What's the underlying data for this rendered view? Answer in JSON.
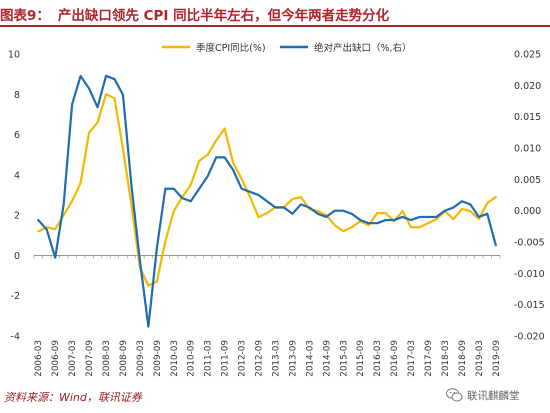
{
  "header": {
    "figure_label": "图表9：",
    "title": "产出缺口领先 CPI 同比半年左右，但今年两者走势分化",
    "accent_color": "#b1232b"
  },
  "chart_data": {
    "type": "line",
    "x": [
      "2006-03",
      "2006-06",
      "2006-09",
      "2006-12",
      "2007-03",
      "2007-06",
      "2007-09",
      "2007-12",
      "2008-03",
      "2008-06",
      "2008-09",
      "2008-12",
      "2009-03",
      "2009-06",
      "2009-09",
      "2009-12",
      "2010-03",
      "2010-06",
      "2010-09",
      "2010-12",
      "2011-03",
      "2011-06",
      "2011-09",
      "2011-12",
      "2012-03",
      "2012-06",
      "2012-09",
      "2012-12",
      "2013-03",
      "2013-06",
      "2013-09",
      "2013-12",
      "2014-03",
      "2014-06",
      "2014-09",
      "2014-12",
      "2015-03",
      "2015-06",
      "2015-09",
      "2015-12",
      "2016-03",
      "2016-06",
      "2016-09",
      "2016-12",
      "2017-03",
      "2017-06",
      "2017-09",
      "2017-12",
      "2018-03",
      "2018-06",
      "2018-09",
      "2018-12",
      "2019-03",
      "2019-06",
      "2019-09"
    ],
    "x_tick_labels": [
      "2006-03",
      "2006-09",
      "2007-03",
      "2007-09",
      "2008-03",
      "2008-09",
      "2009-03",
      "2009-09",
      "2010-03",
      "2010-09",
      "2011-03",
      "2011-09",
      "2012-03",
      "2012-09",
      "2013-03",
      "2013-09",
      "2014-03",
      "2014-09",
      "2015-03",
      "2015-09",
      "2016-03",
      "2016-09",
      "2017-03",
      "2017-09",
      "2018-03",
      "2018-09",
      "2019-03",
      "2019-09"
    ],
    "series": [
      {
        "name": "季度CPI同比(%)",
        "axis": "left",
        "color": "#f5b800",
        "values": [
          1.2,
          1.4,
          1.3,
          2.0,
          2.7,
          3.6,
          6.1,
          6.6,
          8.0,
          7.8,
          5.3,
          2.5,
          -0.6,
          -1.5,
          -1.3,
          0.7,
          2.2,
          2.9,
          3.5,
          4.7,
          5.0,
          5.7,
          6.3,
          4.6,
          3.8,
          2.9,
          1.9,
          2.1,
          2.4,
          2.4,
          2.8,
          2.9,
          2.3,
          2.2,
          2.0,
          1.5,
          1.2,
          1.4,
          1.7,
          1.5,
          2.1,
          2.1,
          1.7,
          2.2,
          1.4,
          1.4,
          1.6,
          1.8,
          2.2,
          1.8,
          2.3,
          2.2,
          1.8,
          2.6,
          2.9
        ]
      },
      {
        "name": "绝对产出缺口（%,右）",
        "axis": "right",
        "color": "#1f6cb0",
        "values": [
          -0.0015,
          -0.003,
          -0.0075,
          0.001,
          0.017,
          0.0215,
          0.0195,
          0.0165,
          0.0215,
          0.021,
          0.0185,
          0.004,
          -0.008,
          -0.0185,
          -0.006,
          0.0035,
          0.0035,
          0.002,
          0.0015,
          0.0035,
          0.0055,
          0.0085,
          0.0085,
          0.0065,
          0.0035,
          0.003,
          0.0025,
          0.0015,
          0.0005,
          0.0005,
          -0.0005,
          0.001,
          0.0005,
          -0.0005,
          -0.001,
          0.0,
          0.0,
          -0.0005,
          -0.0015,
          -0.002,
          -0.002,
          -0.0015,
          -0.0015,
          -0.001,
          -0.0015,
          -0.001,
          -0.001,
          -0.001,
          0.0,
          0.0005,
          0.0015,
          0.001,
          -0.001,
          -0.0005,
          -0.0055
        ]
      }
    ],
    "y_left": {
      "range": [
        -4,
        10
      ],
      "ticks": [
        -4,
        -2,
        0,
        2,
        4,
        6,
        8,
        10
      ],
      "tick_labels": [
        "-4",
        "-2",
        "0",
        "2",
        "4",
        "6",
        "8",
        "10"
      ]
    },
    "y_right": {
      "range": [
        -0.02,
        0.025
      ],
      "ticks": [
        -0.02,
        -0.015,
        -0.01,
        -0.005,
        0.0,
        0.005,
        0.01,
        0.015,
        0.02,
        0.025
      ],
      "tick_labels": [
        "-0.020",
        "-0.015",
        "-0.010",
        "-0.005",
        "0.000",
        "0.005",
        "0.010",
        "0.015",
        "0.020",
        "0.025"
      ]
    },
    "grid": false,
    "legend_position": "top-center"
  },
  "source": {
    "text": "资料来源：Wind，联讯证券"
  },
  "watermark": {
    "text": "联讯麒麟堂",
    "icon": "wechat-icon"
  }
}
